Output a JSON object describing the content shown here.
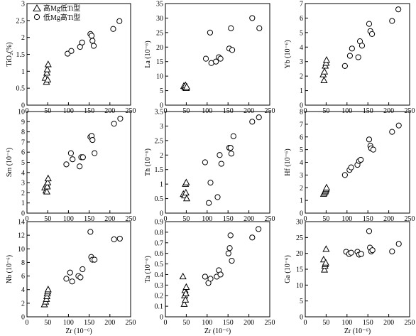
{
  "legend": {
    "placement": "top-left of first panel",
    "entries": [
      {
        "marker": "triangle",
        "label": "高Mg低Ti型"
      },
      {
        "marker": "circle",
        "label": "低Mg高Ti型"
      }
    ]
  },
  "chart_data": [
    {
      "id": "tio2",
      "type": "scatter",
      "xlabel": "",
      "ylabel": "TiO₂(%)",
      "xlim": [
        0,
        250
      ],
      "ylim": [
        0,
        3
      ],
      "xticks": [
        "0",
        "50",
        "100",
        "150",
        "200",
        "250"
      ],
      "yticks": [
        "0",
        "0.5",
        "1",
        "1.5",
        "2",
        "2.5",
        "3"
      ],
      "series": [
        {
          "name": "高Mg低Ti型",
          "marker": "triangle",
          "x": [
            44,
            47,
            48,
            49,
            50,
            51
          ],
          "y": [
            0.8,
            0.68,
            0.95,
            1.05,
            0.75,
            1.2
          ]
        },
        {
          "name": "低Mg高Ti型",
          "marker": "circle",
          "x": [
            98,
            107,
            128,
            133,
            153,
            156,
            158,
            161,
            208,
            223
          ],
          "y": [
            1.52,
            1.6,
            1.72,
            1.85,
            2.1,
            2.05,
            1.9,
            1.75,
            2.25,
            2.48
          ]
        }
      ]
    },
    {
      "id": "la",
      "type": "scatter",
      "xlabel": "",
      "ylabel": "La (10⁻⁶)",
      "xlim": [
        0,
        250
      ],
      "ylim": [
        0,
        35
      ],
      "xticks": [
        "0",
        "50",
        "100",
        "150",
        "200",
        "250"
      ],
      "yticks": [
        "0",
        "5",
        "10",
        "15",
        "20",
        "25",
        "30",
        "35"
      ],
      "series": [
        {
          "name": "高Mg低Ti型",
          "marker": "triangle",
          "x": [
            44,
            47,
            48,
            50,
            51
          ],
          "y": [
            6.5,
            6.0,
            6.8,
            5.8,
            6.3
          ]
        },
        {
          "name": "低Mg高Ti型",
          "marker": "circle",
          "x": [
            97,
            107,
            110,
            121,
            128,
            132,
            153,
            157,
            160,
            208,
            225
          ],
          "y": [
            16.0,
            25.0,
            14.5,
            15.0,
            16.5,
            16.0,
            19.5,
            26.5,
            19.0,
            30.0,
            26.5
          ]
        }
      ]
    },
    {
      "id": "yb",
      "type": "scatter",
      "xlabel": "",
      "ylabel": "Yb (10⁻⁶)",
      "xlim": [
        0,
        250
      ],
      "ylim": [
        0,
        7
      ],
      "xticks": [
        "0",
        "50",
        "100",
        "150",
        "200",
        "250"
      ],
      "yticks": [
        "0",
        "1",
        "2",
        "3",
        "4",
        "5",
        "6",
        "7"
      ],
      "series": [
        {
          "name": "高Mg低Ti型",
          "marker": "triangle",
          "x": [
            43,
            45,
            46,
            48,
            50,
            51
          ],
          "y": [
            2.1,
            1.7,
            2.3,
            2.7,
            2.9,
            3.1
          ]
        },
        {
          "name": "低Mg高Ti型",
          "marker": "circle",
          "x": [
            95,
            107,
            112,
            127,
            131,
            136,
            153,
            156,
            160,
            208,
            223
          ],
          "y": [
            2.7,
            3.4,
            3.9,
            3.3,
            4.4,
            4.1,
            5.6,
            5.1,
            4.9,
            5.8,
            6.6
          ]
        }
      ]
    },
    {
      "id": "sm",
      "type": "scatter",
      "xlabel": "",
      "ylabel": "Sm (10⁻⁶)",
      "xlim": [
        0,
        250
      ],
      "ylim": [
        0,
        10
      ],
      "xticks": [
        "0",
        "50",
        "100",
        "150",
        "200",
        "250"
      ],
      "yticks": [
        "0",
        "1",
        "2",
        "3",
        "4",
        "5",
        "6",
        "7",
        "8",
        "9",
        "10"
      ],
      "series": [
        {
          "name": "高Mg低Ti型",
          "marker": "triangle",
          "x": [
            43,
            46,
            47,
            48,
            49,
            50,
            51
          ],
          "y": [
            2.5,
            2.2,
            2.8,
            2.1,
            2.6,
            3.0,
            3.4
          ]
        },
        {
          "name": "低Mg高Ti型",
          "marker": "circle",
          "x": [
            95,
            106,
            110,
            127,
            131,
            135,
            153,
            156,
            158,
            163,
            210,
            225
          ],
          "y": [
            4.8,
            5.9,
            5.3,
            4.6,
            5.5,
            5.5,
            7.5,
            7.6,
            7.2,
            5.9,
            8.8,
            9.3
          ]
        }
      ]
    },
    {
      "id": "th",
      "type": "scatter",
      "xlabel": "",
      "ylabel": "Th (10⁻⁶)",
      "xlim": [
        0,
        250
      ],
      "ylim": [
        0,
        3.5
      ],
      "xticks": [
        "0",
        "50",
        "100",
        "150",
        "200",
        "250"
      ],
      "yticks": [
        "0",
        "0.5",
        "1",
        "1.5",
        "2",
        "2.5",
        "3",
        "3.5"
      ],
      "series": [
        {
          "name": "高Mg低Ti型",
          "marker": "triangle",
          "x": [
            43,
            46,
            48,
            49,
            50,
            51
          ],
          "y": [
            0.65,
            0.6,
            1.0,
            0.7,
            1.05,
            0.5
          ]
        },
        {
          "name": "低Mg高Ti型",
          "marker": "circle",
          "x": [
            95,
            104,
            108,
            125,
            130,
            134,
            153,
            156,
            158,
            163,
            208,
            224
          ],
          "y": [
            1.75,
            0.35,
            1.05,
            0.55,
            2.0,
            1.7,
            2.25,
            2.25,
            2.05,
            2.65,
            3.15,
            3.3
          ]
        }
      ]
    },
    {
      "id": "hf",
      "type": "scatter",
      "xlabel": "",
      "ylabel": "Hf (10⁻⁶)",
      "xlim": [
        0,
        250
      ],
      "ylim": [
        0,
        8
      ],
      "xticks": [
        "0",
        "50",
        "100",
        "150",
        "200",
        "250"
      ],
      "yticks": [
        "0",
        "1",
        "2",
        "3",
        "4",
        "5",
        "6",
        "7",
        "8"
      ],
      "series": [
        {
          "name": "高Mg低Ti型",
          "marker": "triangle",
          "x": [
            44,
            46,
            48,
            49,
            50,
            51
          ],
          "y": [
            1.5,
            1.6,
            1.7,
            1.8,
            1.9,
            2.0
          ]
        },
        {
          "name": "低Mg高Ti型",
          "marker": "circle",
          "x": [
            95,
            106,
            110,
            125,
            129,
            133,
            153,
            156,
            158,
            163,
            208,
            224
          ],
          "y": [
            3.0,
            3.4,
            3.6,
            3.8,
            4.1,
            4.2,
            5.8,
            5.3,
            5.1,
            5.0,
            6.4,
            6.9
          ]
        }
      ]
    },
    {
      "id": "nb",
      "type": "scatter",
      "xlabel": "Zr (10⁻⁶)",
      "ylabel": "Nb (10⁻⁶)",
      "xlim": [
        0,
        250
      ],
      "ylim": [
        0,
        14
      ],
      "xticks": [
        "0",
        "50",
        "100",
        "150",
        "200",
        "250"
      ],
      "yticks": [
        "0",
        "2",
        "4",
        "6",
        "8",
        "10",
        "12",
        "14"
      ],
      "series": [
        {
          "name": "高Mg低Ti型",
          "marker": "triangle",
          "x": [
            42,
            45,
            47,
            48,
            49,
            50,
            51
          ],
          "y": [
            1.8,
            2.2,
            2.6,
            3.0,
            3.4,
            3.7,
            4.0
          ]
        },
        {
          "name": "低Mg高Ti型",
          "marker": "circle",
          "x": [
            95,
            104,
            109,
            124,
            129,
            134,
            153,
            155,
            158,
            163,
            210,
            224
          ],
          "y": [
            5.6,
            6.5,
            5.2,
            6.0,
            5.8,
            7.0,
            12.5,
            8.8,
            8.4,
            8.4,
            11.4,
            11.5
          ]
        }
      ]
    },
    {
      "id": "ta",
      "type": "scatter",
      "xlabel": "Zr (10⁻⁶)",
      "ylabel": "Ta (10⁻⁶)",
      "xlim": [
        0,
        250
      ],
      "ylim": [
        0,
        0.9
      ],
      "xticks": [
        "0",
        "50",
        "100",
        "150",
        "200",
        "250"
      ],
      "yticks": [
        "0",
        "0.1",
        "0.2",
        "0.3",
        "0.4",
        "0.5",
        "0.6",
        "0.7",
        "0.8",
        "0.9"
      ],
      "series": [
        {
          "name": "高Mg低Ti型",
          "marker": "triangle",
          "x": [
            42,
            45,
            46,
            47,
            48,
            49,
            50
          ],
          "y": [
            0.38,
            0.12,
            0.2,
            0.25,
            0.16,
            0.22,
            0.28
          ]
        },
        {
          "name": "低Mg高Ti型",
          "marker": "circle",
          "x": [
            95,
            103,
            108,
            123,
            128,
            132,
            151,
            154,
            156,
            159,
            208,
            223
          ],
          "y": [
            0.38,
            0.32,
            0.36,
            0.38,
            0.44,
            0.4,
            0.6,
            0.65,
            0.77,
            0.53,
            0.75,
            0.83
          ]
        }
      ]
    },
    {
      "id": "ga",
      "type": "scatter",
      "xlabel": "Zr (10⁻⁶)",
      "ylabel": "Ga (10⁻⁶)",
      "xlim": [
        0,
        250
      ],
      "ylim": [
        0,
        30
      ],
      "xticks": [
        "0",
        "50",
        "100",
        "150",
        "200",
        "250"
      ],
      "yticks": [
        "0",
        "5",
        "10",
        "15",
        "20",
        "25",
        "30"
      ],
      "series": [
        {
          "name": "高Mg低Ti型",
          "marker": "triangle",
          "x": [
            44,
            46,
            47,
            48,
            49,
            50
          ],
          "y": [
            18.0,
            14.8,
            16.0,
            16.5,
            17.0,
            21.3
          ]
        },
        {
          "name": "低Mg高Ti型",
          "marker": "circle",
          "x": [
            98,
            105,
            110,
            125,
            129,
            134,
            153,
            155,
            158,
            161,
            208,
            224
          ],
          "y": [
            20.5,
            19.8,
            20.2,
            20.5,
            19.6,
            19.8,
            27.0,
            21.8,
            20.6,
            21.0,
            20.6,
            23.0
          ]
        }
      ]
    }
  ]
}
